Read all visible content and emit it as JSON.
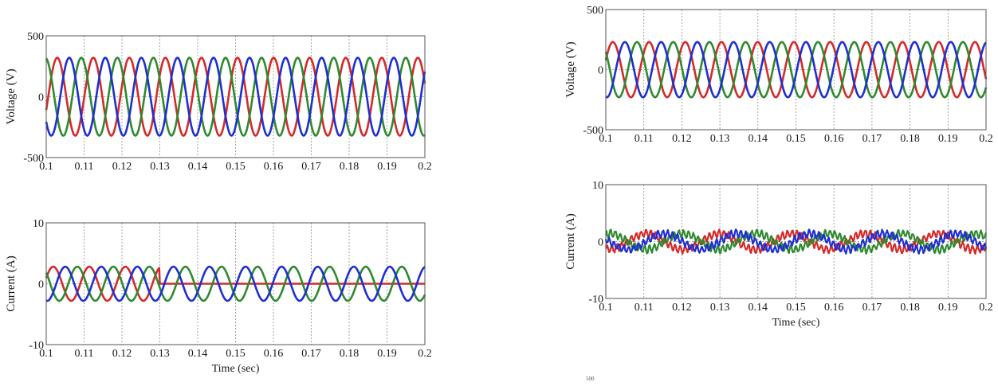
{
  "colors": {
    "a": "#d42a2a",
    "b": "#2f8a2f",
    "c": "#1f2fd0",
    "grid": "#8c8c8c",
    "frame": "#555555"
  },
  "stray_label": "500",
  "chart_data": [
    {
      "type": "line",
      "id": "left-voltage",
      "ylabel": "Voltage (V)",
      "xlabel": "",
      "xlim": [
        0.1,
        0.2
      ],
      "ylim": [
        -500,
        500
      ],
      "xticks": [
        "0.1",
        "0.11",
        "0.12",
        "0.13",
        "0.14",
        "0.15",
        "0.16",
        "0.17",
        "0.18",
        "0.19",
        "0.2"
      ],
      "yticks": [
        "500",
        "0",
        "-500"
      ],
      "grid": true,
      "series": [
        {
          "color": "a",
          "waveform": "sine",
          "amplitude": 320,
          "frequency_hz": 105,
          "phase_deg": 160
        },
        {
          "color": "b",
          "waveform": "sine",
          "amplitude": 320,
          "frequency_hz": 105,
          "phase_deg": 280
        },
        {
          "color": "c",
          "waveform": "sine",
          "amplitude": 320,
          "frequency_hz": 105,
          "phase_deg": 40
        }
      ]
    },
    {
      "type": "line",
      "id": "left-current",
      "ylabel": "Current (A)",
      "xlabel": "Time (sec)",
      "xlim": [
        0.1,
        0.2
      ],
      "ylim": [
        -10,
        10
      ],
      "xticks": [
        "0.1",
        "0.11",
        "0.12",
        "0.13",
        "0.14",
        "0.15",
        "0.16",
        "0.17",
        "0.18",
        "0.19",
        "0.2"
      ],
      "yticks": [
        "10",
        "0",
        "-10"
      ],
      "grid": true,
      "series": [
        {
          "color": "a",
          "waveform": "sine",
          "amplitude": 2.8,
          "frequency_hz": 105,
          "phase_deg": 200,
          "zero_after": 0.13
        },
        {
          "color": "b",
          "waveform": "sine",
          "amplitude": 2.8,
          "frequency_hz": 105,
          "phase_deg": 320
        },
        {
          "color": "c",
          "waveform": "sine",
          "amplitude": 2.8,
          "frequency_hz": 105,
          "phase_deg": 80
        }
      ]
    },
    {
      "type": "line",
      "id": "right-voltage",
      "ylabel": "Voltage (V)",
      "xlabel": "",
      "xlim": [
        0.1,
        0.2
      ],
      "ylim": [
        -500,
        500
      ],
      "xticks": [
        "0.1",
        "0.11",
        "0.12",
        "0.13",
        "0.14",
        "0.15",
        "0.16",
        "0.17",
        "0.18",
        "0.19",
        "0.2"
      ],
      "yticks": [
        "500",
        "0",
        "-500"
      ],
      "grid": true,
      "series": [
        {
          "color": "a",
          "waveform": "sine",
          "amplitude": 230,
          "frequency_hz": 105,
          "phase_deg": 200
        },
        {
          "color": "b",
          "waveform": "sine",
          "amplitude": 230,
          "frequency_hz": 105,
          "phase_deg": 320
        },
        {
          "color": "c",
          "waveform": "sine",
          "amplitude": 230,
          "frequency_hz": 105,
          "phase_deg": 80
        }
      ]
    },
    {
      "type": "line",
      "id": "right-current",
      "ylabel": "Current (A)",
      "xlabel": "Time (sec)",
      "xlim": [
        0.1,
        0.2
      ],
      "ylim": [
        -10,
        10
      ],
      "xticks": [
        "0.1",
        "0.11",
        "0.12",
        "0.13",
        "0.14",
        "0.15",
        "0.16",
        "0.17",
        "0.18",
        "0.19",
        "0.2"
      ],
      "yticks": [
        "10",
        "0",
        "-10"
      ],
      "grid": true,
      "series": [
        {
          "color": "a",
          "waveform": "noisy-sine",
          "amplitude": 1.4,
          "frequency_hz": 52,
          "phase_deg": 180,
          "ripple": 0.6
        },
        {
          "color": "b",
          "waveform": "noisy-sine",
          "amplitude": 1.4,
          "frequency_hz": 52,
          "phase_deg": 0,
          "ripple": 0.6
        },
        {
          "color": "c",
          "waveform": "noisy-sine",
          "amplitude": 1.4,
          "frequency_hz": 52,
          "phase_deg": 90,
          "ripple": 0.6
        }
      ]
    }
  ]
}
